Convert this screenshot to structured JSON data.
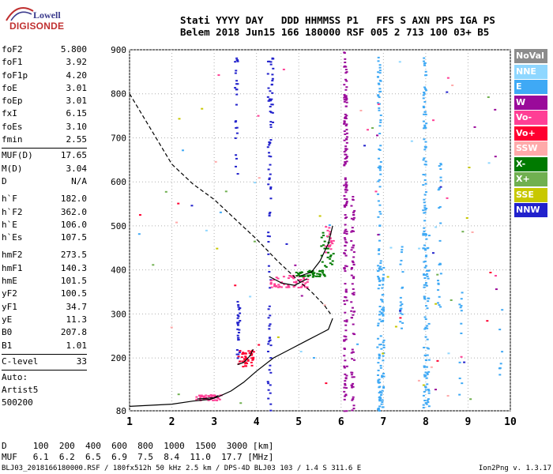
{
  "logo": {
    "top": "Lowell",
    "bottom": "DIGISONDE"
  },
  "header": {
    "line1": "Stati YYYY DAY   DDD HHMMSS P1   FFS S AXN PPS IGA PS",
    "line2": "Belem 2018 Jun15 166 180000 RSF 005 2 713 100 03+ B5"
  },
  "params": {
    "group1": [
      {
        "label": "foF2",
        "value": "5.800"
      },
      {
        "label": "foF1",
        "value": "3.92"
      },
      {
        "label": "foF1p",
        "value": "4.20"
      },
      {
        "label": "foE",
        "value": "3.01"
      },
      {
        "label": "foEp",
        "value": "3.01"
      },
      {
        "label": "fxI",
        "value": "6.15"
      },
      {
        "label": "foEs",
        "value": "3.10"
      },
      {
        "label": "fmin",
        "value": "2.55"
      }
    ],
    "group2": [
      {
        "label": "MUF(D)",
        "value": "17.65"
      },
      {
        "label": "M(D)",
        "value": "3.04"
      },
      {
        "label": "D",
        "value": "N/A"
      }
    ],
    "group3": [
      {
        "label": "h`F",
        "value": "182.0"
      },
      {
        "label": "h`F2",
        "value": "362.0"
      },
      {
        "label": "h`E",
        "value": "106.0"
      },
      {
        "label": "h`Es",
        "value": "107.5"
      }
    ],
    "group4": [
      {
        "label": "hmF2",
        "value": "273.5"
      },
      {
        "label": "hmF1",
        "value": "140.3"
      },
      {
        "label": "hmE",
        "value": "101.5"
      },
      {
        "label": "yF2",
        "value": "100.5"
      },
      {
        "label": "yF1",
        "value": "34.7"
      },
      {
        "label": "yE",
        "value": "11.3"
      },
      {
        "label": "B0",
        "value": "207.8"
      },
      {
        "label": "B1",
        "value": "1.01"
      }
    ],
    "group5": [
      {
        "label": "C-level",
        "value": "33"
      }
    ],
    "auto": [
      "Auto:",
      "Artist5",
      "500200"
    ]
  },
  "legend": [
    {
      "label": "NoVal",
      "color": "#8c8c8c"
    },
    {
      "label": "NNE",
      "color": "#8fd7ff"
    },
    {
      "label": "E",
      "color": "#3fa9f5"
    },
    {
      "label": "W",
      "color": "#9a0a9a"
    },
    {
      "label": "Vo-",
      "color": "#ff3f95"
    },
    {
      "label": "Vo+",
      "color": "#ff0030"
    },
    {
      "label": "SSW",
      "color": "#ffaaaa"
    },
    {
      "label": "X-",
      "color": "#007a00"
    },
    {
      "label": "X+",
      "color": "#70b050"
    },
    {
      "label": "SSE",
      "color": "#c8c800"
    },
    {
      "label": "NNW",
      "color": "#2222cc"
    }
  ],
  "bottom": {
    "line1": "D     100  200  400  600  800  1000  1500  3000 [km]",
    "line2": "MUF   6.1  6.2  6.5  6.9  7.5  8.4  11.0  17.7 [MHz]"
  },
  "footer": {
    "left": "BLJ03_2018166180000.RSF / 180fx512h 50 kHz 2.5 km / DPS-4D BLJ03 103 / 1.4 S 311.6 E",
    "right": "Ion2Png v. 1.3.17"
  },
  "chart_data": {
    "type": "scatter",
    "title": "",
    "xlabel": "",
    "ylabel": "",
    "xlim": [
      1,
      10
    ],
    "ylim": [
      80,
      900
    ],
    "xticks": [
      1,
      2,
      3,
      4,
      5,
      6,
      7,
      8,
      9,
      10
    ],
    "yticks": [
      80,
      200,
      300,
      400,
      500,
      600,
      700,
      800,
      900
    ],
    "grid": true,
    "legend_position": "right",
    "series": [
      {
        "name": "profile",
        "style": "solid",
        "x": [
          1.0,
          2.0,
          2.5,
          2.9,
          3.1,
          3.4,
          3.7,
          4.0,
          4.4,
          4.8,
          5.2,
          5.5,
          5.7,
          5.8
        ],
        "y": [
          90,
          95,
          102,
          106,
          112,
          125,
          145,
          170,
          200,
          220,
          240,
          255,
          265,
          290
        ]
      },
      {
        "name": "muf-curve",
        "style": "dashed",
        "x": [
          1.0,
          1.5,
          2.0,
          2.5,
          3.0,
          3.5,
          4.0,
          4.5,
          5.0,
          5.3,
          5.6,
          5.75
        ],
        "y": [
          800,
          720,
          640,
          595,
          560,
          515,
          470,
          420,
          375,
          350,
          320,
          300
        ]
      },
      {
        "name": "trace-F2-upper",
        "style": "solid",
        "x": [
          5.0,
          5.3,
          5.5,
          5.7,
          5.8
        ],
        "y": [
          385,
          395,
          420,
          460,
          500
        ]
      },
      {
        "name": "trace-F2-lower",
        "style": "solid",
        "x": [
          4.3,
          4.6,
          4.9,
          5.2
        ],
        "y": [
          385,
          370,
          365,
          380
        ]
      },
      {
        "name": "trace-F1",
        "style": "solid",
        "x": [
          3.55,
          3.7,
          3.85,
          3.92
        ],
        "y": [
          185,
          190,
          205,
          220
        ]
      },
      {
        "name": "trace-E",
        "style": "solid",
        "x": [
          2.6,
          2.8,
          3.0,
          3.1
        ],
        "y": [
          107,
          108,
          110,
          115
        ]
      }
    ],
    "echo_points": {
      "W": {
        "x": [
          6.05,
          6.15,
          6.25,
          6.3
        ],
        "y": [
          540,
          500,
          450,
          400
        ]
      },
      "Vo+": {
        "x": [
          3.0,
          3.5,
          3.8,
          4.5,
          4.7
        ],
        "y": [
          110,
          185,
          200,
          370,
          365
        ]
      },
      "X-": {
        "x": [
          4.9,
          5.1,
          5.3,
          5.5,
          5.7
        ],
        "y": [
          390,
          392,
          395,
          410,
          430
        ]
      }
    }
  }
}
